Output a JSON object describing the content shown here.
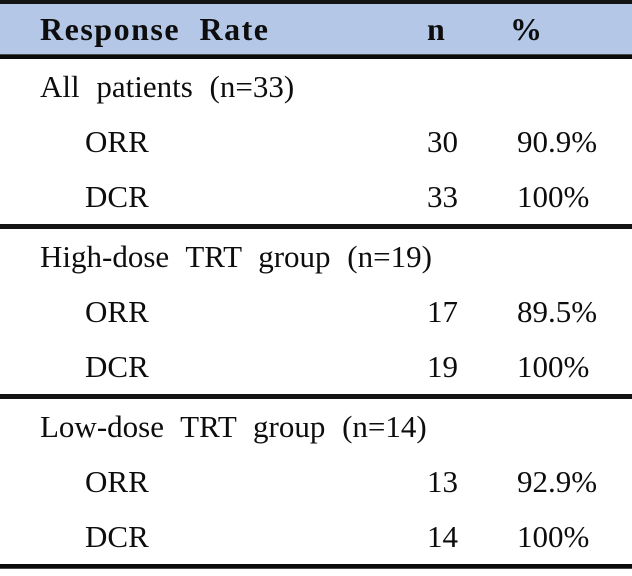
{
  "table": {
    "columns": {
      "label": "Response Rate",
      "n": "n",
      "pct": "%"
    },
    "sections": [
      {
        "title": "All patients (n=33)",
        "rows": [
          {
            "label": "ORR",
            "n": "30",
            "pct": "90.9%"
          },
          {
            "label": "DCR",
            "n": "33",
            "pct": "100%"
          }
        ]
      },
      {
        "title": "High-dose TRT group (n=19)",
        "rows": [
          {
            "label": "ORR",
            "n": "17",
            "pct": "89.5%"
          },
          {
            "label": "DCR",
            "n": "19",
            "pct": "100%"
          }
        ]
      },
      {
        "title": "Low-dose TRT group (n=14)",
        "rows": [
          {
            "label": "ORR",
            "n": "13",
            "pct": "92.9%"
          },
          {
            "label": "DCR",
            "n": "14",
            "pct": "100%"
          }
        ]
      }
    ],
    "colors": {
      "header_bg": "#b4c7e7",
      "border": "#141414",
      "text": "#0d0d0d"
    }
  },
  "chart_data": {
    "type": "table",
    "title": "Response Rate",
    "columns": [
      "Response Rate",
      "n",
      "%"
    ],
    "rows": [
      [
        "All patients (n=33)",
        null,
        null
      ],
      [
        "ORR",
        30,
        "90.9%"
      ],
      [
        "DCR",
        33,
        "100%"
      ],
      [
        "High-dose TRT group (n=19)",
        null,
        null
      ],
      [
        "ORR",
        17,
        "89.5%"
      ],
      [
        "DCR",
        19,
        "100%"
      ],
      [
        "Low-dose TRT group (n=14)",
        null,
        null
      ],
      [
        "ORR",
        13,
        "92.9%"
      ],
      [
        "DCR",
        14,
        "100%"
      ]
    ]
  }
}
